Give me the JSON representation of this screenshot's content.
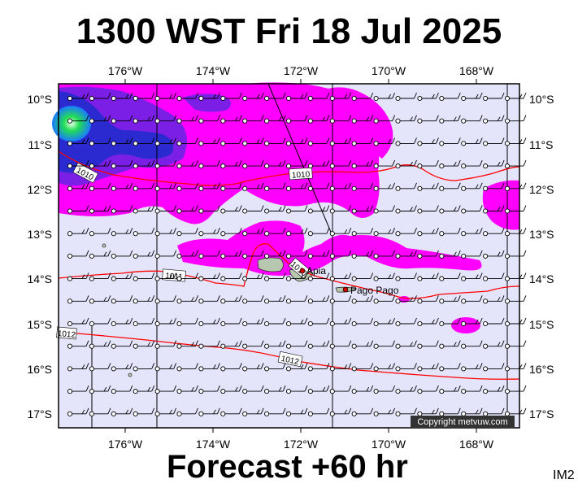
{
  "title": "1300 WST Fri 18 Jul 2025",
  "footer": "Forecast +60 hr",
  "corner_label": "IM2",
  "copyright": "Copyright metvuw.com",
  "lon_ticks": [
    "176°W",
    "174°W",
    "172°W",
    "170°W",
    "168°W"
  ],
  "lat_ticks": [
    "10°S",
    "11°S",
    "12°S",
    "13°S",
    "14°S",
    "15°S",
    "16°S",
    "17°S"
  ],
  "isobar_labels": [
    "1010",
    "1010",
    "1011",
    "1012",
    "1012",
    "1010"
  ],
  "places": [
    "Apia",
    "Pago Pago"
  ],
  "colors": {
    "ocean": "#e4e4fb",
    "rain_light": "#ff00ff",
    "rain_medium": "#7b1fe6",
    "rain_heavy": "#2a2ad0",
    "rain_extreme": "#22dd55",
    "isobar": "#ff0000",
    "land": "#b8c8b0"
  },
  "map_extent": {
    "lon": [
      -177.3,
      -166.8
    ],
    "lat": [
      -9.7,
      -17.3
    ]
  }
}
